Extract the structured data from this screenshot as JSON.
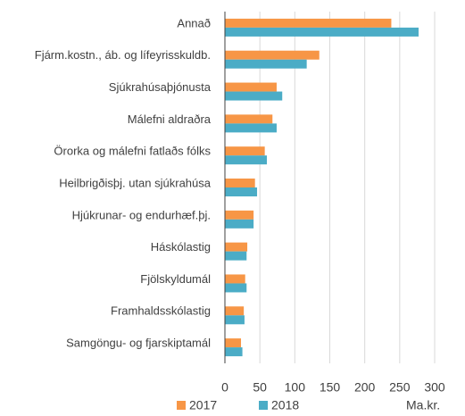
{
  "chart_data": {
    "type": "barh",
    "categories": [
      "Annað",
      "Fjárm.kostn., áb. og lífeyrisskuldb.",
      "Sjúkrahúsaþjónusta",
      "Málefni aldraðra",
      "Örorka og málefni fatlaðs fólks",
      "Heilbrigðisþj. utan sjúkrahúsa",
      "Hjúkrunar- og endurhæf.þj.",
      "Háskólastig",
      "Fjölskyldumál",
      "Framhaldsskólastig",
      "Samgöngu- og fjarskiptamál"
    ],
    "series": [
      {
        "name": "2017",
        "color": "#f79646",
        "values": [
          238,
          135,
          74,
          68,
          57,
          43,
          41,
          32,
          29,
          27,
          23
        ]
      },
      {
        "name": "2018",
        "color": "#4bacc6",
        "values": [
          277,
          117,
          82,
          74,
          60,
          46,
          41,
          31,
          31,
          28,
          25
        ]
      }
    ],
    "xlim": [
      0,
      300
    ],
    "xticks": [
      0,
      50,
      100,
      150,
      200,
      250,
      300
    ],
    "x_label": "Ma.kr.",
    "grid": true,
    "legend": "bottom"
  }
}
